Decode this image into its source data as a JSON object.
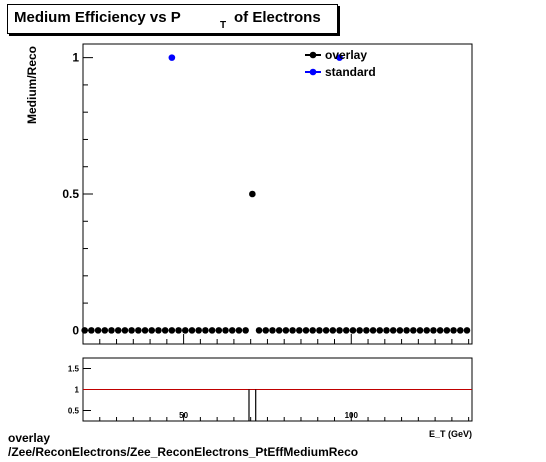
{
  "title": {
    "main": "Medium Efficiency vs P",
    "subscript": "T",
    "rest": "of Electrons"
  },
  "footer": {
    "line1": "overlay",
    "line2": "/Zee/ReconElectrons/Zee_ReconElectrons_PtEffMediumReco"
  },
  "chart_data": [
    {
      "type": "scatter",
      "ylabel": "Medium/Reco",
      "xlabel": "E_T (GeV)",
      "xlim": [
        20,
        136
      ],
      "ylim": [
        -0.05,
        1.05
      ],
      "y_ticks": [
        0,
        0.5,
        1
      ],
      "y_tick_labels": [
        "0",
        "0.5",
        "1"
      ],
      "legend": {
        "placement": "top-right",
        "entries": [
          "overlay",
          "standard"
        ]
      },
      "series": [
        {
          "name": "overlay",
          "color": "#000000",
          "x": [
            20.5,
            22.5,
            24.5,
            26.5,
            28.5,
            30.5,
            32.5,
            34.5,
            36.5,
            38.5,
            40.5,
            42.5,
            44.5,
            46.5,
            48.5,
            50.5,
            52.5,
            54.5,
            56.5,
            58.5,
            60.5,
            62.5,
            64.5,
            66.5,
            68.5,
            70.5,
            72.5,
            74.5,
            76.5,
            78.5,
            80.5,
            82.5,
            84.5,
            86.5,
            88.5,
            90.5,
            92.5,
            94.5,
            96.5,
            98.5,
            100.5,
            102.5,
            104.5,
            106.5,
            108.5,
            110.5,
            112.5,
            114.5,
            116.5,
            118.5,
            120.5,
            122.5,
            124.5,
            126.5,
            128.5,
            130.5,
            132.5,
            134.5
          ],
          "y": [
            0,
            0,
            0,
            0,
            0,
            0,
            0,
            0,
            0,
            0,
            0,
            0,
            0,
            0,
            0,
            0,
            0,
            0,
            0,
            0,
            0,
            0,
            0,
            0,
            0,
            0.5,
            0,
            0,
            0,
            0,
            0,
            0,
            0,
            0,
            0,
            0,
            0,
            0,
            0,
            0,
            0,
            0,
            0,
            0,
            0,
            0,
            0,
            0,
            0,
            0,
            0,
            0,
            0,
            0,
            0,
            0,
            0,
            0
          ]
        },
        {
          "name": "standard",
          "color": "#0000ff",
          "x": [
            46.5,
            96.5
          ],
          "y": [
            1,
            1
          ]
        }
      ]
    },
    {
      "type": "line",
      "xlim": [
        20,
        136
      ],
      "ylim": [
        0.25,
        1.75
      ],
      "y_ticks": [
        0.5,
        1,
        1.5
      ],
      "y_tick_labels": [
        "0.5",
        "1",
        "1.5"
      ],
      "x_ticks": [
        50,
        100
      ],
      "x_tick_labels": [
        "50",
        "100"
      ],
      "reference_line": {
        "y": 1,
        "color": "#c00000"
      },
      "ratio_markers": [
        {
          "x": 69.5
        },
        {
          "x": 71.5
        }
      ]
    }
  ]
}
